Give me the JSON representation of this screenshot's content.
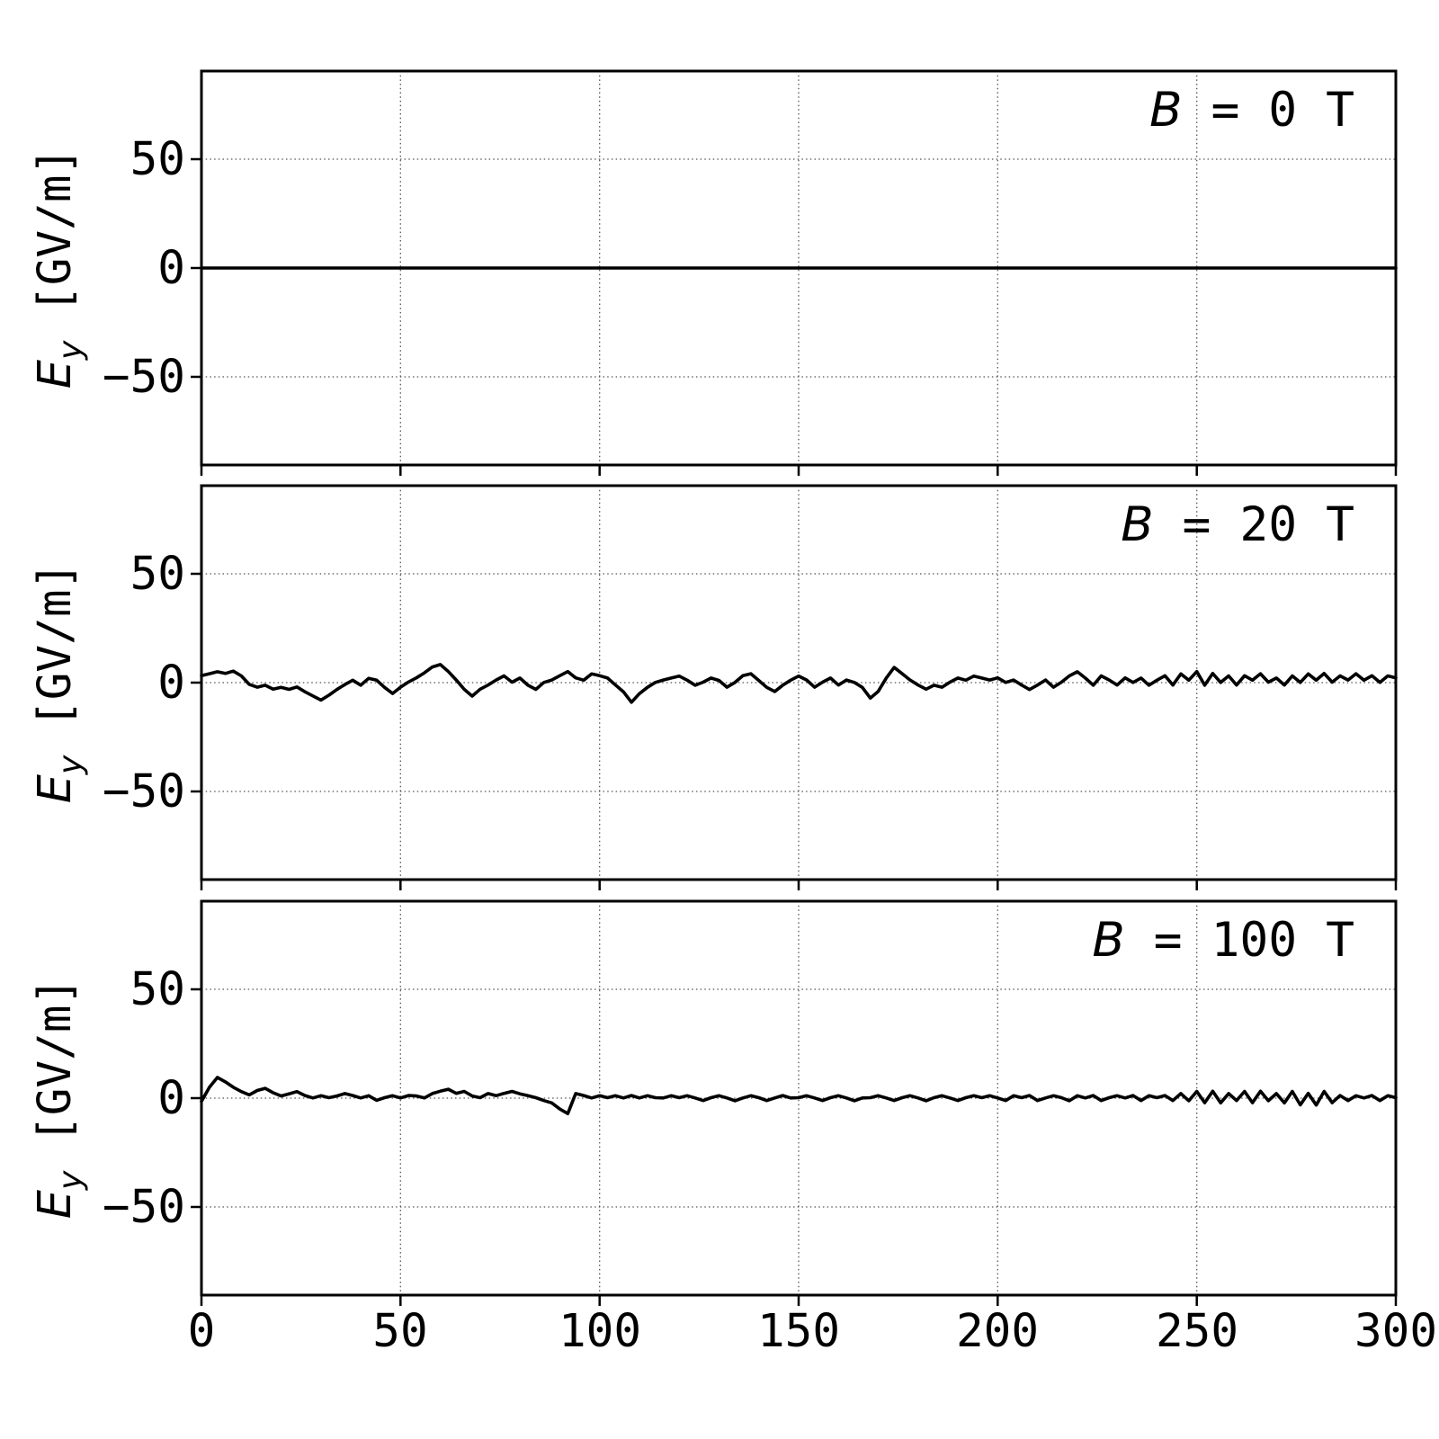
{
  "figure": {
    "background_color": "#ffffff",
    "line_color": "#000000",
    "grid_color": "#555555"
  },
  "chart_data": {
    "type": "line",
    "layout": "3 vertically stacked subplots sharing the x-axis",
    "title": "",
    "xlabel": "",
    "ylabel": "E_y [GV/m]",
    "ylabel_parts": {
      "var": "E",
      "sub": "y",
      "unit": " [GV/m]"
    },
    "grid": true,
    "grid_style": "dotted",
    "legend": "none",
    "xlim": [
      0,
      300
    ],
    "ylim": [
      -90.5,
      90.5
    ],
    "x_ticks": [
      0,
      50,
      100,
      150,
      200,
      250,
      300
    ],
    "x_tick_labels": [
      "0",
      "50",
      "100",
      "150",
      "200",
      "250",
      "300"
    ],
    "y_ticks": [
      50,
      0,
      -50
    ],
    "y_tick_labels": [
      "50",
      "0",
      "−50"
    ],
    "panels": [
      {
        "id": "B0",
        "title": "B = 0 T",
        "title_var": "B",
        "title_rest": " = 0 T",
        "x_start": 0,
        "x_step": 300,
        "values": [
          0,
          0
        ]
      },
      {
        "id": "B20",
        "title": "B = 20 T",
        "title_var": "B",
        "title_rest": " = 20 T",
        "x_start": 0,
        "x_step": 2,
        "values": [
          3.2,
          4.1,
          5.0,
          4.2,
          5.3,
          3.1,
          -0.8,
          -2.1,
          -1.2,
          -3.0,
          -2.2,
          -3.1,
          -2.0,
          -4.2,
          -6.1,
          -8.0,
          -5.8,
          -3.2,
          -0.9,
          1.1,
          -1.2,
          2.0,
          1.1,
          -2.2,
          -5.0,
          -2.1,
          0.3,
          2.2,
          4.5,
          7.2,
          8.3,
          5.1,
          1.2,
          -3.1,
          -6.2,
          -3.0,
          -1.1,
          1.2,
          3.1,
          0.2,
          2.1,
          -1.2,
          -3.1,
          0.1,
          1.2,
          3.2,
          5.1,
          2.2,
          1.1,
          4.0,
          3.2,
          2.1,
          -1.1,
          -4.2,
          -9.0,
          -5.1,
          -2.2,
          0.1,
          1.2,
          2.1,
          3.0,
          1.1,
          -1.2,
          0.2,
          2.1,
          1.0,
          -2.1,
          0.1,
          3.2,
          4.1,
          1.0,
          -2.2,
          -4.1,
          -1.2,
          1.1,
          3.0,
          1.2,
          -2.1,
          0.2,
          2.1,
          -1.1,
          1.2,
          0.1,
          -2.2,
          -7.1,
          -4.0,
          2.1,
          7.0,
          4.1,
          1.2,
          -1.1,
          -3.0,
          -1.2,
          -2.1,
          0.2,
          2.1,
          1.1,
          3.0,
          2.1,
          1.2,
          2.2,
          0.1,
          1.2,
          -1.1,
          -3.2,
          -1.1,
          1.2,
          -2.1,
          0.2,
          3.1,
          5.0,
          2.1,
          -1.2,
          3.1,
          1.2,
          -1.1,
          2.2,
          0.1,
          2.1,
          -1.2,
          1.1,
          3.2,
          -1.1,
          4.0,
          1.1,
          5.1,
          -1.2,
          4.2,
          0.1,
          3.1,
          -1.1,
          3.2,
          1.1,
          4.1,
          0.2,
          2.1,
          -1.1,
          3.1,
          0.1,
          4.0,
          1.1,
          4.2,
          0.2,
          3.1,
          1.2,
          4.1,
          1.1,
          3.2,
          0.1,
          3.1,
          2.2
        ]
      },
      {
        "id": "B100",
        "title": "B = 100 T",
        "title_var": "B",
        "title_rest": " = 100 T",
        "x_start": 0,
        "x_step": 2,
        "values": [
          -1.5,
          5.0,
          9.5,
          7.5,
          5.0,
          3.0,
          1.5,
          3.5,
          4.5,
          2.5,
          1.0,
          2.0,
          3.0,
          1.2,
          0.1,
          1.1,
          0.2,
          1.0,
          2.1,
          1.2,
          0.1,
          1.1,
          -1.0,
          0.2,
          1.1,
          0.1,
          1.2,
          1.0,
          0.1,
          2.1,
          3.2,
          4.1,
          2.2,
          3.1,
          1.0,
          0.2,
          2.1,
          1.1,
          2.2,
          3.1,
          2.0,
          1.1,
          0.2,
          -1.1,
          -2.2,
          -5.0,
          -7.1,
          2.1,
          1.2,
          0.1,
          1.1,
          0.2,
          1.1,
          0.1,
          1.2,
          0.1,
          1.1,
          0.2,
          0.1,
          1.1,
          0.2,
          1.1,
          0.1,
          -1.1,
          0.2,
          1.1,
          0.1,
          -1.2,
          0.1,
          1.1,
          0.2,
          -1.1,
          0.1,
          1.2,
          0.1,
          0.2,
          1.1,
          0.1,
          -1.1,
          0.2,
          1.1,
          0.1,
          -1.2,
          0.1,
          0.2,
          1.1,
          0.1,
          -1.1,
          0.2,
          1.1,
          0.1,
          -1.2,
          0.2,
          1.1,
          0.1,
          -1.1,
          0.2,
          1.1,
          0.2,
          1.1,
          0.1,
          -1.1,
          1.1,
          0.2,
          1.2,
          -1.1,
          0.1,
          1.1,
          0.2,
          -1.2,
          1.1,
          0.1,
          1.2,
          -1.1,
          0.2,
          1.1,
          0.1,
          1.2,
          -1.1,
          1.1,
          0.2,
          1.2,
          -1.1,
          2.1,
          -1.2,
          3.1,
          -2.1,
          3.2,
          -2.2,
          2.1,
          -1.1,
          3.1,
          -2.1,
          3.2,
          -1.2,
          2.1,
          -2.2,
          3.1,
          -3.1,
          2.2,
          -3.2,
          3.1,
          -2.1,
          1.2,
          -1.1,
          1.1,
          0.1,
          1.2,
          -1.1,
          1.1,
          0.2
        ]
      }
    ]
  }
}
